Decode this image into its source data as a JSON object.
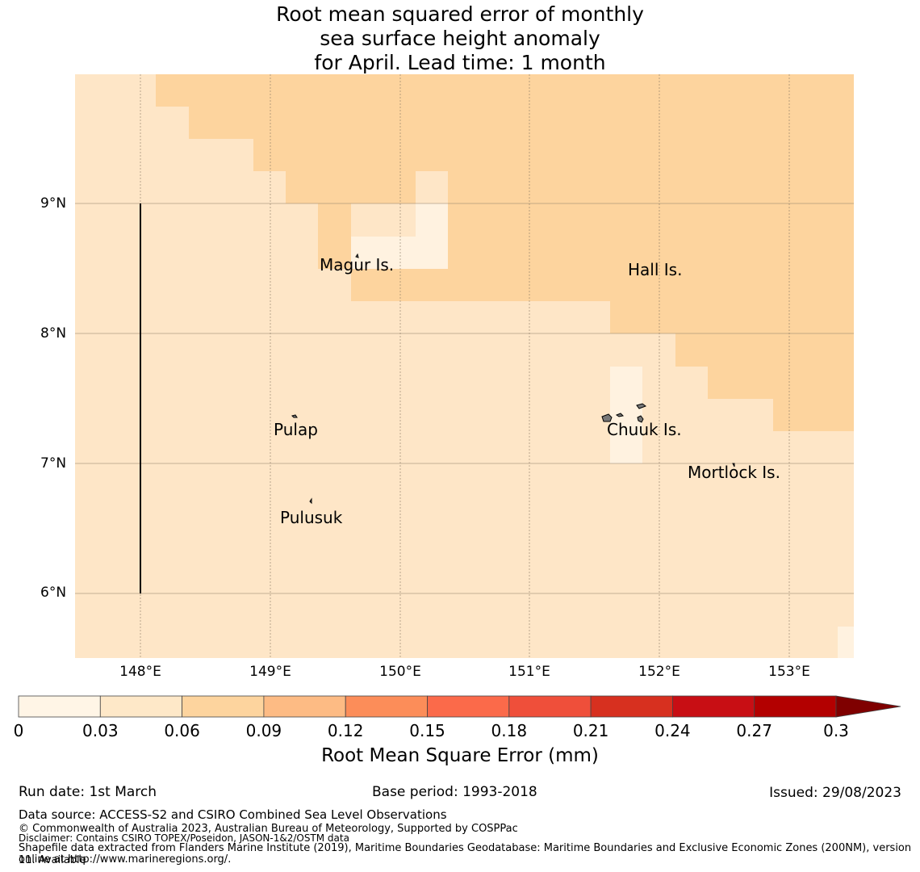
{
  "title": {
    "line1": "Root mean squared error of monthly",
    "line2": "sea surface height anomaly",
    "line3": "for April. Lead time: 1 month"
  },
  "map": {
    "lat_labels": [
      "9°N",
      "8°N",
      "7°N",
      "6°N"
    ],
    "lon_labels": [
      "148°E",
      "149°E",
      "150°E",
      "151°E",
      "152°E",
      "153°E"
    ],
    "extent": {
      "lon_min": 147.5,
      "lon_max": 153.5,
      "lat_min": 5.5,
      "lat_max": 10.0
    },
    "colors": {
      "c0": "#fff2e0",
      "c1": "#fee6c7",
      "c2": "#fdd49e"
    },
    "places": {
      "magur": "Magur Is.",
      "hall": "Hall Is.",
      "pulap": "Pulap",
      "chuuk": "Chuuk Is.",
      "mortlock": "Mortlock Is.",
      "pulusuk": "Pulusuk"
    }
  },
  "colorbar": {
    "ticks": [
      "0",
      "0.03",
      "0.06",
      "0.09",
      "0.12",
      "0.15",
      "0.18",
      "0.21",
      "0.24",
      "0.27",
      "0.3"
    ],
    "colors": [
      "#fff5e6",
      "#fee8c8",
      "#fdd49e",
      "#fdbb84",
      "#fc8d59",
      "#fb6a4a",
      "#ef4f3a",
      "#d7301f",
      "#c80e14",
      "#b30000",
      "#7f0000"
    ],
    "label": "Root Mean Square Error (mm)"
  },
  "footer": {
    "run_date": "Run date: 1st March",
    "base_period": "Base period: 1993-2018",
    "issued": "Issued: 29/08/2023",
    "data_source": "Data source: ACCESS-S2 and CSIRO Combined Sea Level Observations",
    "copyright": "© Commonwealth of Australia 2023, Australian Bureau of Meteorology, Supported by COSPPac",
    "disclaimer": "Disclaimer: Contains CSIRO TOPEX/Poseidon, JASON-1&2/OSTM data",
    "shapefile1": "Shapefile data extracted from Flanders Marine Institute (2019), Maritime Boundaries Geodatabase: Maritime Boundaries and Exclusive Economic Zones (200NM), version 11. Available",
    "shapefile2": "online at http://www.marineregions.org/."
  }
}
